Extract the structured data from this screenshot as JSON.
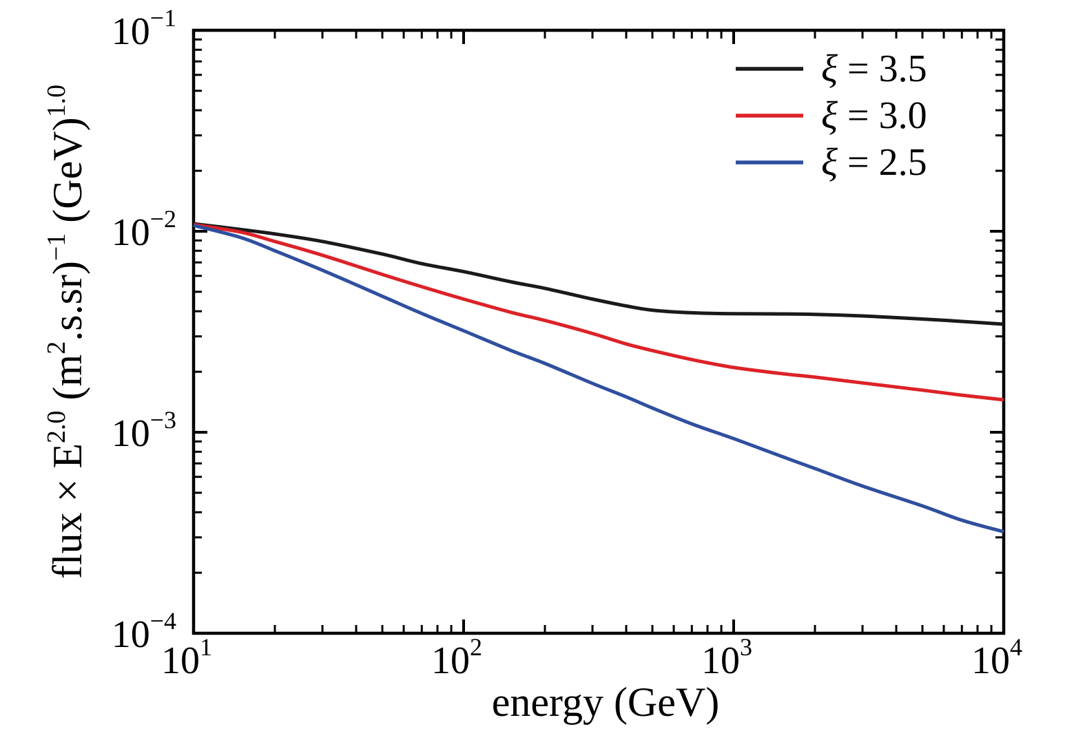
{
  "figure": {
    "background": "#ffffff",
    "axis_color": "#000000"
  },
  "chart_data": {
    "type": "line",
    "title": "",
    "xlabel": "energy (GeV)",
    "ylabel_plain": "flux × E^2.0 (m^2.s.sr)^-1 (GeV)^1.0",
    "ylabel_segments": [
      {
        "text": "flux × E",
        "sup": false
      },
      {
        "text": "2.0",
        "sup": true
      },
      {
        "text": " (m",
        "sup": false
      },
      {
        "text": "2",
        "sup": true
      },
      {
        "text": ".s.sr)",
        "sup": false
      },
      {
        "text": "−1",
        "sup": true
      },
      {
        "text": " (GeV)",
        "sup": false
      },
      {
        "text": "1.0",
        "sup": true
      }
    ],
    "x_scale": "log",
    "y_scale": "log",
    "xlim": [
      10,
      10000
    ],
    "ylim": [
      0.0001,
      0.1
    ],
    "x_tick_exponents": [
      "1",
      "2",
      "3",
      "4"
    ],
    "y_tick_exponents": [
      "−1",
      "−2",
      "−3",
      "−4"
    ],
    "grid": false,
    "legend_position": "top-right",
    "series": [
      {
        "id": "xi-3.5",
        "name": "ξ = 3.5",
        "color": "#1a1a1a",
        "points": [
          [
            10,
            0.0109
          ],
          [
            15,
            0.0102
          ],
          [
            20,
            0.0097
          ],
          [
            30,
            0.0089
          ],
          [
            50,
            0.0077
          ],
          [
            70,
            0.0069
          ],
          [
            100,
            0.0063
          ],
          [
            150,
            0.0056
          ],
          [
            200,
            0.0052
          ],
          [
            300,
            0.0046
          ],
          [
            400,
            0.00425
          ],
          [
            500,
            0.00405
          ],
          [
            700,
            0.00393
          ],
          [
            1000,
            0.00389
          ],
          [
            1500,
            0.00388
          ],
          [
            2000,
            0.00386
          ],
          [
            3000,
            0.00379
          ],
          [
            5000,
            0.00366
          ],
          [
            7000,
            0.00356
          ],
          [
            10000,
            0.00345
          ]
        ]
      },
      {
        "id": "xi-3.0",
        "name": "ξ = 3.0",
        "color": "#dc2228",
        "points": [
          [
            10,
            0.0108
          ],
          [
            15,
            0.0099
          ],
          [
            20,
            0.0089
          ],
          [
            30,
            0.0076
          ],
          [
            50,
            0.0061
          ],
          [
            70,
            0.0053
          ],
          [
            100,
            0.0046
          ],
          [
            150,
            0.00395
          ],
          [
            200,
            0.0036
          ],
          [
            300,
            0.0031
          ],
          [
            400,
            0.00275
          ],
          [
            500,
            0.00255
          ],
          [
            700,
            0.0023
          ],
          [
            1000,
            0.0021
          ],
          [
            1500,
            0.00196
          ],
          [
            2000,
            0.00188
          ],
          [
            3000,
            0.00176
          ],
          [
            5000,
            0.00162
          ],
          [
            7000,
            0.00153
          ],
          [
            10000,
            0.00145
          ]
        ]
      },
      {
        "id": "xi-2.5",
        "name": "ξ = 2.5",
        "color": "#2f4f9f",
        "points": [
          [
            10,
            0.0107
          ],
          [
            15,
            0.0093
          ],
          [
            20,
            0.008
          ],
          [
            30,
            0.0064
          ],
          [
            50,
            0.00475
          ],
          [
            70,
            0.0039
          ],
          [
            100,
            0.0032
          ],
          [
            150,
            0.00255
          ],
          [
            200,
            0.0022
          ],
          [
            300,
            0.00175
          ],
          [
            400,
            0.0015
          ],
          [
            500,
            0.00132
          ],
          [
            700,
            0.0011
          ],
          [
            1000,
            0.00093
          ],
          [
            1500,
            0.00076
          ],
          [
            2000,
            0.00066
          ],
          [
            3000,
            0.00054
          ],
          [
            5000,
            0.00043
          ],
          [
            7000,
            0.000365
          ],
          [
            10000,
            0.00032
          ]
        ]
      }
    ]
  }
}
